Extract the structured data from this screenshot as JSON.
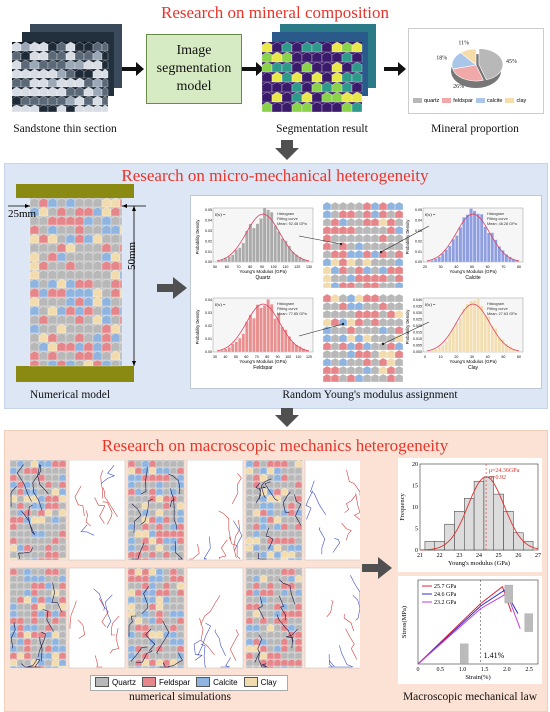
{
  "sections": {
    "composition": {
      "title": "Research on mineral composition",
      "thin_section_caption": "Sandstone thin section",
      "model_box_label": "Image\nsegmentation\nmodel",
      "segmentation_caption": "Segmentation result",
      "proportion_caption": "Mineral proportion",
      "pie": {
        "slices": [
          {
            "name": "quartz",
            "value": 45,
            "label": "45%",
            "color": "#b8b8b8"
          },
          {
            "name": "feldspar",
            "value": 26,
            "label": "26%",
            "color": "#f0a8a8"
          },
          {
            "name": "calcite",
            "value": 18,
            "label": "18%",
            "color": "#a9c6e8"
          },
          {
            "name": "clay",
            "value": 11,
            "label": "11%",
            "color": "#f5dca8"
          }
        ]
      }
    },
    "micro": {
      "title": "Research on micro-mechanical heterogeneity",
      "dim_width": "25mm",
      "dim_height": "50mm",
      "model_caption": "Numerical model",
      "assignment_caption": "Random Young's modulus assignment",
      "histograms": [
        {
          "mineral": "Quartz",
          "color": "#aaaaaa",
          "mean_label": "Mean: 92.48 GPa",
          "xlabel": "Young's Modulus (GPa)",
          "ylabel": "Probability Density",
          "ticks": [
            "50",
            "60",
            "70",
            "80",
            "90",
            "100",
            "110",
            "120",
            "130"
          ],
          "yticks": [
            "0.00",
            "0.01",
            "0.02",
            "0.03",
            "0.04",
            "0.05"
          ]
        },
        {
          "mineral": "Calcite",
          "color": "#8e9ee0",
          "mean_label": "Mean: 48.28 GPa",
          "xlabel": "Young's Modulus (GPa)",
          "ylabel": "Probability Density",
          "ticks": [
            "20",
            "30",
            "40",
            "50",
            "60",
            "70",
            "80"
          ],
          "yticks": [
            "0.00",
            "0.01",
            "0.02",
            "0.03",
            "0.04",
            "0.05"
          ]
        },
        {
          "mineral": "Feldspar",
          "color": "#e89090",
          "mean_label": "Mean: 77.85 GPa",
          "xlabel": "Young's Modulus (GPa)",
          "ylabel": "Probability Density",
          "ticks": [
            "30",
            "40",
            "50",
            "60",
            "70",
            "80",
            "90",
            "100",
            "110",
            "120"
          ],
          "yticks": [
            "0.00",
            "0.01",
            "0.02",
            "0.03",
            "0.04"
          ]
        },
        {
          "mineral": "Clay",
          "color": "#f2deb0",
          "mean_label": "Mean: 27.63 GPa",
          "xlabel": "Young's Modulus (GPa)",
          "ylabel": "Probability Density",
          "ticks": [
            "0",
            "10",
            "20",
            "30",
            "40",
            "50",
            "60"
          ],
          "yticks": [
            "0.000",
            "0.005",
            "0.010",
            "0.015",
            "0.020",
            "0.025",
            "0.030",
            "0.035",
            "0.040"
          ]
        }
      ],
      "hist_legend": [
        "Histogram",
        "Fitting curve"
      ]
    },
    "macro": {
      "title": "Research on macroscopic mechanics heterogeneity",
      "sim_caption": "numerical simulations",
      "law_caption": "Macroscopic mechanical law",
      "legend": [
        {
          "name": "Quartz",
          "color": "#b8b8b8"
        },
        {
          "name": "Feldspar",
          "color": "#e5878a"
        },
        {
          "name": "Calcite",
          "color": "#8fb4e0"
        },
        {
          "name": "Clay",
          "color": "#f2dcae"
        }
      ],
      "freq_chart": {
        "ylabel": "Frequency",
        "xlabel": "Young's modulus (GPa)",
        "annotation_mu": "μ=24.36GPa",
        "annotation_sigma": "σ=0.92",
        "xticks": [
          "21",
          "22",
          "23",
          "24",
          "25",
          "26",
          "27"
        ],
        "yticks": [
          "0",
          "5",
          "10",
          "15",
          "20"
        ]
      },
      "stress_chart": {
        "ylabel": "Stress(MPa)",
        "xlabel": "Strain(%)",
        "xticks": [
          "0",
          "0.5",
          "1.0",
          "1.5",
          "2.0",
          "2.5"
        ],
        "annotation": "1.41%",
        "series": [
          {
            "name": "25.7 GPa",
            "color": "#e0233a"
          },
          {
            "name": "24.6 GPa",
            "color": "#2432c8"
          },
          {
            "name": "23.2 GPa",
            "color": "#c23ed6"
          }
        ]
      }
    }
  },
  "chart_data": [
    {
      "type": "pie",
      "categories": [
        "quartz",
        "feldspar",
        "calcite",
        "clay"
      ],
      "values": [
        45,
        26,
        18,
        11
      ]
    },
    {
      "type": "bar",
      "xlabel": "Young's modulus (GPa)",
      "ylabel": "Frequency",
      "categories": [
        21.5,
        22.0,
        22.5,
        23.0,
        23.5,
        24.0,
        24.5,
        25.0,
        25.5,
        26.0,
        26.5
      ],
      "values": [
        2,
        2,
        6,
        9,
        12,
        16,
        17,
        13,
        9,
        4,
        2
      ],
      "ylim": [
        0,
        20
      ],
      "xlim": [
        21,
        27
      ]
    },
    {
      "type": "line",
      "xlabel": "Strain(%)",
      "ylabel": "Stress(MPa)",
      "series": [
        {
          "name": "25.7 GPa",
          "x": [
            0,
            1.41,
            1.9,
            2.1
          ],
          "y": [
            0,
            360,
            460,
            310
          ]
        },
        {
          "name": "24.6 GPa",
          "x": [
            0,
            1.41,
            1.95,
            2.25
          ],
          "y": [
            0,
            345,
            440,
            300
          ]
        },
        {
          "name": "23.2 GPa",
          "x": [
            0,
            1.41,
            2.0,
            2.3
          ],
          "y": [
            0,
            330,
            420,
            210
          ]
        }
      ],
      "xlim": [
        0,
        2.7
      ]
    }
  ]
}
